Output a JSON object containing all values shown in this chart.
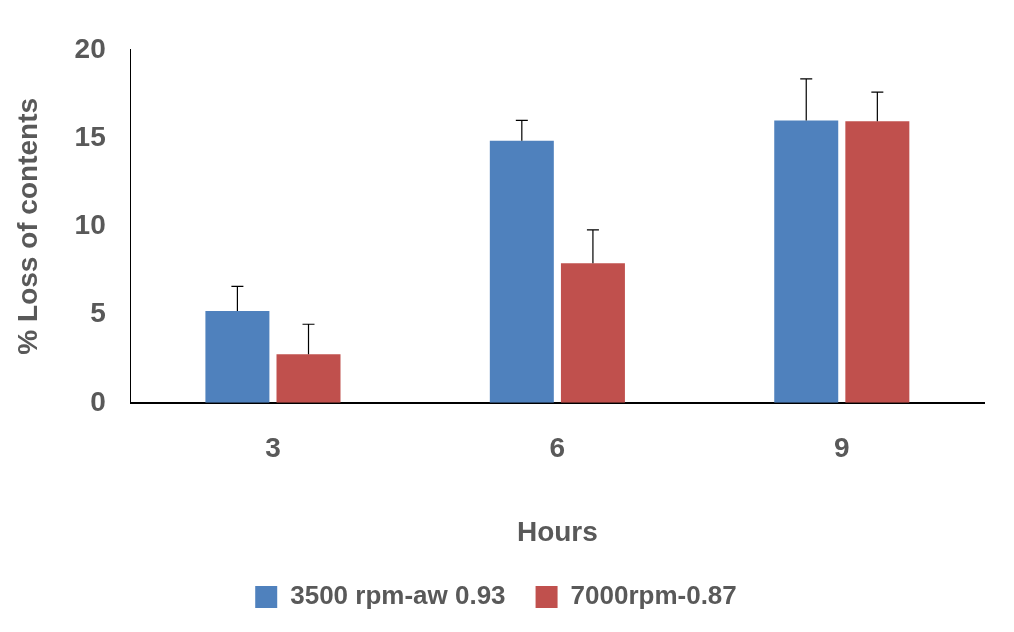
{
  "chart_data": {
    "type": "bar",
    "xlabel": "Hours",
    "ylabel": "% Loss of contents",
    "categories": [
      "3",
      "6",
      "9"
    ],
    "series": [
      {
        "name": "3500 rpm-aw 0.93",
        "color": "#4f81bd",
        "values": [
          5.2,
          14.85,
          16.0
        ],
        "errors": [
          [
            5.2,
            6.6
          ],
          [
            14.85,
            16.0
          ],
          [
            16.0,
            18.35
          ]
        ]
      },
      {
        "name": "7000rpm-0.87",
        "color": "#c0504d",
        "values": [
          2.75,
          7.9,
          15.95
        ],
        "errors": [
          [
            2.75,
            4.45
          ],
          [
            7.9,
            9.8
          ],
          [
            15.95,
            17.6
          ]
        ]
      }
    ],
    "ylim": [
      0,
      20
    ],
    "yticks": [
      0,
      5,
      10,
      15,
      20
    ],
    "grid": false,
    "legend": "bottom"
  }
}
